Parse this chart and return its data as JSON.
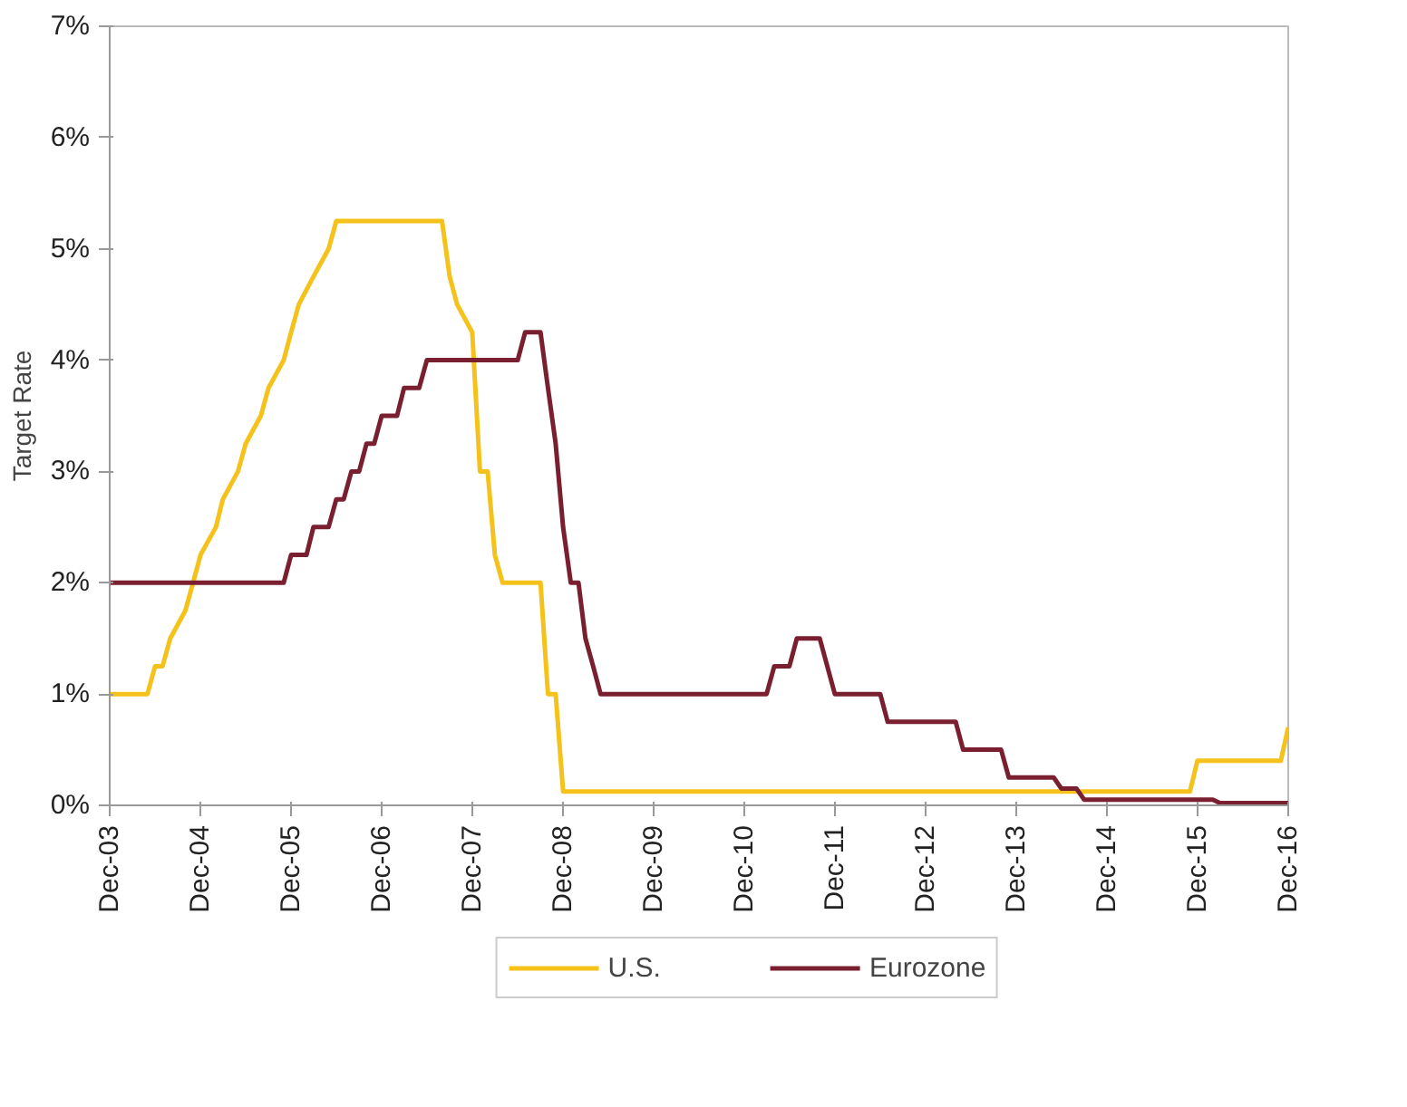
{
  "chart_data": {
    "type": "line",
    "ylabel": "Target Rate",
    "legend": "bottom",
    "grid": false,
    "xlim": [
      "2003-12",
      "2016-12"
    ],
    "xticks": [
      {
        "value": "2003-12",
        "label": "Dec-03"
      },
      {
        "value": "2004-12",
        "label": "Dec-04"
      },
      {
        "value": "2005-12",
        "label": "Dec-05"
      },
      {
        "value": "2006-12",
        "label": "Dec-06"
      },
      {
        "value": "2007-12",
        "label": "Dec-07"
      },
      {
        "value": "2008-12",
        "label": "Dec-08"
      },
      {
        "value": "2009-12",
        "label": "Dec-09"
      },
      {
        "value": "2010-12",
        "label": "Dec-10"
      },
      {
        "value": "2011-12",
        "label": "Dec-11"
      },
      {
        "value": "2012-12",
        "label": "Dec-12"
      },
      {
        "value": "2013-12",
        "label": "Dec-13"
      },
      {
        "value": "2014-12",
        "label": "Dec-14"
      },
      {
        "value": "2015-12",
        "label": "Dec-15"
      },
      {
        "value": "2016-12",
        "label": "Dec-16"
      }
    ],
    "ylim": [
      0,
      7
    ],
    "yticks": [
      {
        "value": 0,
        "label": "0%"
      },
      {
        "value": 1,
        "label": "1%"
      },
      {
        "value": 2,
        "label": "2%"
      },
      {
        "value": 3,
        "label": "3%"
      },
      {
        "value": 4,
        "label": "4%"
      },
      {
        "value": 5,
        "label": "5%"
      },
      {
        "value": 6,
        "label": "6%"
      },
      {
        "value": 7,
        "label": "7%"
      }
    ],
    "series": [
      {
        "name": "U.S.",
        "color": "#f5c21b",
        "x": [
          "2003-12",
          "2004-05",
          "2004-06",
          "2004-07",
          "2004-08",
          "2004-10",
          "2004-11",
          "2004-12",
          "2005-02",
          "2005-03",
          "2005-05",
          "2005-06",
          "2005-08",
          "2005-09",
          "2005-11",
          "2005-12",
          "2006-01",
          "2006-03",
          "2006-05",
          "2006-06",
          "2007-08",
          "2007-09",
          "2007-10",
          "2007-12",
          "2008-01",
          "2008-02",
          "2008-03",
          "2008-04",
          "2008-09",
          "2008-10",
          "2008-11",
          "2008-12",
          "2015-11",
          "2015-12",
          "2016-11",
          "2016-12"
        ],
        "values": [
          1.0,
          1.0,
          1.25,
          1.25,
          1.5,
          1.75,
          2.0,
          2.25,
          2.5,
          2.75,
          3.0,
          3.25,
          3.5,
          3.75,
          4.0,
          4.25,
          4.5,
          4.75,
          5.0,
          5.25,
          5.25,
          4.75,
          4.5,
          4.25,
          3.0,
          3.0,
          2.25,
          2.0,
          2.0,
          1.0,
          1.0,
          0.125,
          0.125,
          0.4,
          0.4,
          0.7
        ]
      },
      {
        "name": "Eurozone",
        "color": "#7a1f30",
        "x": [
          "2003-12",
          "2005-11",
          "2005-12",
          "2006-02",
          "2006-03",
          "2006-05",
          "2006-06",
          "2006-07",
          "2006-08",
          "2006-09",
          "2006-10",
          "2006-11",
          "2006-12",
          "2007-02",
          "2007-03",
          "2007-05",
          "2007-06",
          "2008-06",
          "2008-07",
          "2008-09",
          "2008-10",
          "2008-11",
          "2008-12",
          "2009-01",
          "2009-02",
          "2009-03",
          "2009-04",
          "2009-05",
          "2011-03",
          "2011-04",
          "2011-06",
          "2011-07",
          "2011-10",
          "2011-12",
          "2012-06",
          "2012-07",
          "2013-04",
          "2013-05",
          "2013-10",
          "2013-11",
          "2014-05",
          "2014-06",
          "2014-08",
          "2014-09",
          "2016-02",
          "2016-03",
          "2016-12"
        ],
        "values": [
          2.0,
          2.0,
          2.25,
          2.25,
          2.5,
          2.5,
          2.75,
          2.75,
          3.0,
          3.0,
          3.25,
          3.25,
          3.5,
          3.5,
          3.75,
          3.75,
          4.0,
          4.0,
          4.25,
          4.25,
          3.75,
          3.25,
          2.5,
          2.0,
          2.0,
          1.5,
          1.25,
          1.0,
          1.0,
          1.25,
          1.25,
          1.5,
          1.5,
          1.0,
          1.0,
          0.75,
          0.75,
          0.5,
          0.5,
          0.25,
          0.25,
          0.15,
          0.15,
          0.05,
          0.05,
          0.02,
          0.02
        ]
      }
    ]
  }
}
